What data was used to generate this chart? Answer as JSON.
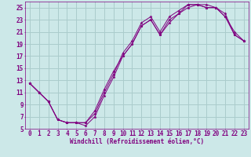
{
  "xlabel": "Windchill (Refroidissement éolien,°C)",
  "bg_color": "#cce8e8",
  "grid_color": "#aacccc",
  "line_color": "#800080",
  "xlim": [
    -0.5,
    23.5
  ],
  "ylim": [
    5,
    26
  ],
  "xticks": [
    0,
    1,
    2,
    3,
    4,
    5,
    6,
    7,
    8,
    9,
    10,
    11,
    12,
    13,
    14,
    15,
    16,
    17,
    18,
    19,
    20,
    21,
    22,
    23
  ],
  "yticks": [
    5,
    7,
    9,
    11,
    13,
    15,
    17,
    19,
    21,
    23,
    25
  ],
  "curve1_x": [
    0,
    1,
    2,
    3,
    4,
    5,
    6,
    7,
    8,
    9,
    10,
    11,
    12,
    13,
    14,
    15,
    16,
    17,
    18,
    19,
    20,
    21,
    22,
    23
  ],
  "curve1_y": [
    12.5,
    11.0,
    9.5,
    6.5,
    6.0,
    6.0,
    6.0,
    7.5,
    11.0,
    14.0,
    17.5,
    19.5,
    22.5,
    23.5,
    21.0,
    23.5,
    24.5,
    25.5,
    25.5,
    25.0,
    25.0,
    24.0,
    20.5,
    19.5
  ],
  "curve2_x": [
    0,
    1,
    2,
    3,
    4,
    5,
    6,
    7,
    8,
    9,
    10,
    11,
    12,
    13,
    14,
    15,
    16,
    17,
    18,
    19,
    20,
    21,
    22,
    23
  ],
  "curve2_y": [
    12.5,
    11.0,
    9.5,
    6.5,
    6.0,
    6.0,
    6.0,
    8.0,
    11.5,
    14.5,
    17.0,
    19.0,
    22.0,
    23.0,
    20.5,
    23.0,
    24.0,
    25.0,
    25.5,
    25.5,
    25.0,
    23.5,
    21.0,
    19.5
  ],
  "curve3_x": [
    0,
    1,
    2,
    3,
    4,
    5,
    6,
    7,
    8,
    9,
    10,
    11,
    12,
    13,
    14,
    15,
    16,
    17,
    18,
    19,
    20,
    21,
    22,
    23
  ],
  "curve3_y": [
    12.5,
    11.0,
    9.5,
    6.5,
    6.0,
    6.0,
    5.5,
    7.0,
    10.5,
    13.5,
    17.0,
    19.0,
    22.0,
    23.0,
    20.5,
    22.5,
    24.0,
    25.5,
    25.5,
    25.0,
    25.0,
    23.5,
    20.5,
    19.5
  ],
  "tick_fontsize": 5.5,
  "xlabel_fontsize": 5.5
}
